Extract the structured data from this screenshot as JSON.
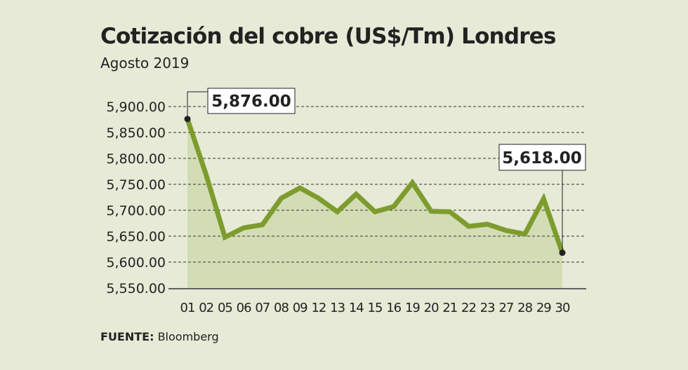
{
  "chart_data": {
    "type": "area",
    "title": "Cotización del cobre (US$/Tm) Londres",
    "subtitle": "Agosto 2019",
    "xlabel": "",
    "ylabel": "",
    "categories": [
      "01",
      "02",
      "05",
      "06",
      "07",
      "08",
      "09",
      "12",
      "13",
      "14",
      "15",
      "16",
      "19",
      "20",
      "21",
      "22",
      "23",
      "27",
      "28",
      "29",
      "30"
    ],
    "values": [
      5876,
      5768,
      5648,
      5666,
      5672,
      5723,
      5743,
      5723,
      5697,
      5731,
      5697,
      5707,
      5753,
      5698,
      5697,
      5669,
      5673,
      5661,
      5654,
      5722,
      5618
    ],
    "ylim": [
      5550,
      5900
    ],
    "yticks": [
      5550,
      5600,
      5650,
      5700,
      5750,
      5800,
      5850,
      5900
    ],
    "ytick_labels": [
      "5,550.00",
      "5,600.00",
      "5,650.00",
      "5,700.00",
      "5,750.00",
      "5,800.00",
      "5,850.00",
      "5,900.00"
    ],
    "grid": true,
    "annotations": [
      {
        "category": "01",
        "label": "5,876.00"
      },
      {
        "category": "30",
        "label": "5,618.00"
      }
    ],
    "line_color": "#7e9c2e",
    "fill_color": "#d3ddb5"
  },
  "source": {
    "label": "FUENTE:",
    "text": "Bloomberg"
  }
}
